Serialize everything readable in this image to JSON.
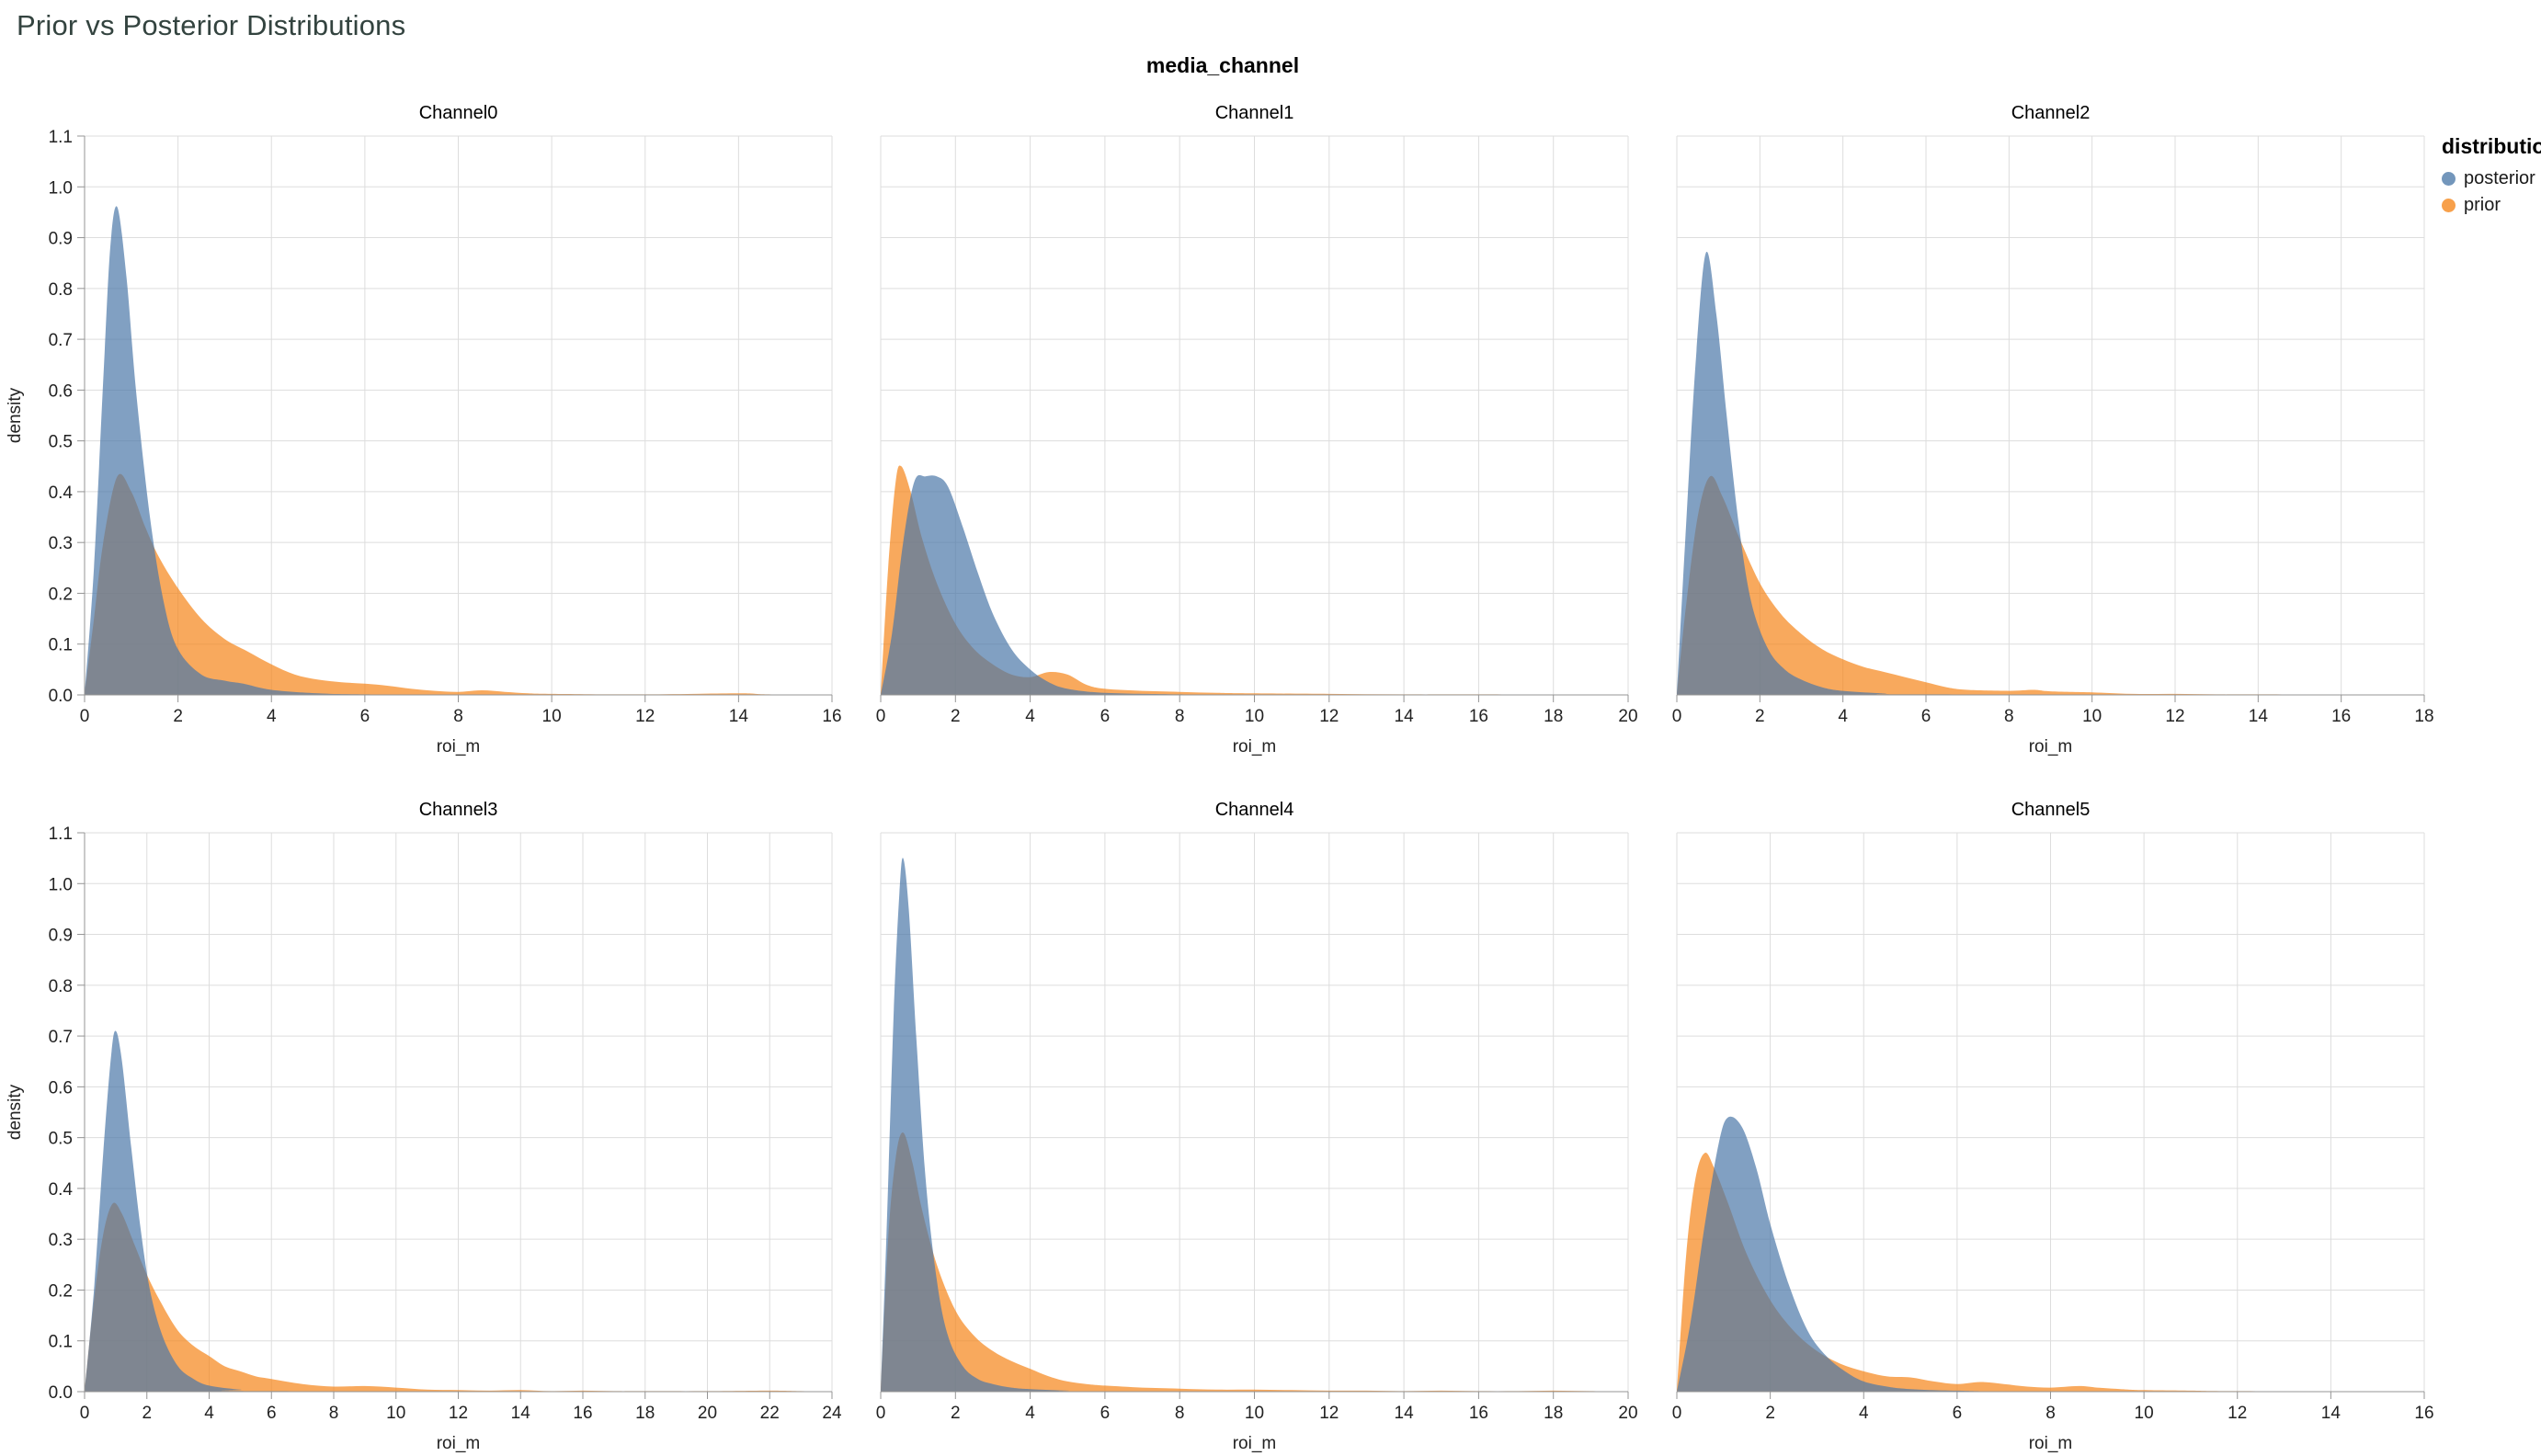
{
  "header": {
    "title": "Prior vs Posterior Distributions"
  },
  "legend": {
    "title": "distribution",
    "entries": [
      {
        "label": "posterior",
        "color": "#4c78a8"
      },
      {
        "label": "prior",
        "color": "#f58518"
      }
    ]
  },
  "chart_data": {
    "type": "area",
    "figure_title": "media_channel",
    "xlabel": "roi_m",
    "ylabel": "density",
    "ylim": [
      0,
      1.1
    ],
    "ytick_step": 0.1,
    "opacity": 0.7,
    "grid": true,
    "legend_position": "top-right",
    "series_colors": {
      "posterior": "#4c78a8",
      "prior": "#f58518"
    },
    "panels": [
      {
        "title": "Channel0",
        "xlim": [
          0,
          16
        ],
        "xtick_step": 2,
        "posterior": [
          [
            0,
            0
          ],
          [
            0.2,
            0.25
          ],
          [
            0.4,
            0.62
          ],
          [
            0.55,
            0.88
          ],
          [
            0.7,
            0.96
          ],
          [
            0.9,
            0.82
          ],
          [
            1.1,
            0.6
          ],
          [
            1.4,
            0.35
          ],
          [
            1.7,
            0.18
          ],
          [
            2.0,
            0.09
          ],
          [
            2.5,
            0.04
          ],
          [
            3.0,
            0.028
          ],
          [
            3.4,
            0.022
          ],
          [
            4.0,
            0.01
          ],
          [
            5,
            0.003
          ],
          [
            6,
            0.001
          ],
          [
            8,
            0
          ],
          [
            16,
            0
          ]
        ],
        "prior": [
          [
            0,
            0
          ],
          [
            0.2,
            0.15
          ],
          [
            0.4,
            0.3
          ],
          [
            0.7,
            0.43
          ],
          [
            1.0,
            0.4
          ],
          [
            1.3,
            0.33
          ],
          [
            1.6,
            0.27
          ],
          [
            2.0,
            0.21
          ],
          [
            2.5,
            0.15
          ],
          [
            3.0,
            0.11
          ],
          [
            3.5,
            0.085
          ],
          [
            4.0,
            0.06
          ],
          [
            4.5,
            0.04
          ],
          [
            5.0,
            0.03
          ],
          [
            5.5,
            0.025
          ],
          [
            6.0,
            0.022
          ],
          [
            6.5,
            0.018
          ],
          [
            7.0,
            0.012
          ],
          [
            7.5,
            0.008
          ],
          [
            8.0,
            0.006
          ],
          [
            8.5,
            0.009
          ],
          [
            9.0,
            0.006
          ],
          [
            9.5,
            0.003
          ],
          [
            10,
            0.002
          ],
          [
            12,
            0.001
          ],
          [
            14,
            0.003
          ],
          [
            14.6,
            0.001
          ],
          [
            16,
            0
          ]
        ]
      },
      {
        "title": "Channel1",
        "xlim": [
          0,
          20
        ],
        "xtick_step": 2,
        "posterior": [
          [
            0,
            0
          ],
          [
            0.3,
            0.12
          ],
          [
            0.6,
            0.3
          ],
          [
            0.9,
            0.42
          ],
          [
            1.2,
            0.43
          ],
          [
            1.5,
            0.43
          ],
          [
            1.8,
            0.41
          ],
          [
            2.2,
            0.33
          ],
          [
            2.6,
            0.24
          ],
          [
            3.0,
            0.16
          ],
          [
            3.5,
            0.09
          ],
          [
            4.0,
            0.05
          ],
          [
            4.5,
            0.025
          ],
          [
            5.0,
            0.012
          ],
          [
            6,
            0.004
          ],
          [
            8,
            0.001
          ],
          [
            10,
            0
          ],
          [
            20,
            0
          ]
        ],
        "prior": [
          [
            0,
            0
          ],
          [
            0.2,
            0.25
          ],
          [
            0.4,
            0.42
          ],
          [
            0.55,
            0.45
          ],
          [
            0.8,
            0.4
          ],
          [
            1.1,
            0.31
          ],
          [
            1.5,
            0.22
          ],
          [
            2.0,
            0.14
          ],
          [
            2.5,
            0.09
          ],
          [
            3.0,
            0.06
          ],
          [
            3.5,
            0.04
          ],
          [
            4.0,
            0.035
          ],
          [
            4.5,
            0.045
          ],
          [
            5.0,
            0.04
          ],
          [
            5.5,
            0.02
          ],
          [
            6.0,
            0.012
          ],
          [
            7,
            0.008
          ],
          [
            8,
            0.006
          ],
          [
            9,
            0.004
          ],
          [
            10,
            0.003
          ],
          [
            12,
            0.002
          ],
          [
            14,
            0.001
          ],
          [
            16,
            0.001
          ],
          [
            20,
            0
          ]
        ]
      },
      {
        "title": "Channel2",
        "xlim": [
          0,
          18
        ],
        "xtick_step": 2,
        "posterior": [
          [
            0,
            0
          ],
          [
            0.2,
            0.3
          ],
          [
            0.45,
            0.65
          ],
          [
            0.7,
            0.87
          ],
          [
            0.95,
            0.75
          ],
          [
            1.2,
            0.55
          ],
          [
            1.5,
            0.33
          ],
          [
            1.8,
            0.18
          ],
          [
            2.2,
            0.09
          ],
          [
            2.6,
            0.05
          ],
          [
            3.0,
            0.03
          ],
          [
            3.5,
            0.015
          ],
          [
            4,
            0.008
          ],
          [
            5,
            0.003
          ],
          [
            6,
            0.001
          ],
          [
            18,
            0
          ]
        ],
        "prior": [
          [
            0,
            0
          ],
          [
            0.2,
            0.16
          ],
          [
            0.5,
            0.35
          ],
          [
            0.8,
            0.43
          ],
          [
            1.1,
            0.39
          ],
          [
            1.5,
            0.31
          ],
          [
            2.0,
            0.22
          ],
          [
            2.5,
            0.16
          ],
          [
            3.0,
            0.12
          ],
          [
            3.5,
            0.09
          ],
          [
            4.0,
            0.07
          ],
          [
            4.5,
            0.055
          ],
          [
            5.0,
            0.045
          ],
          [
            5.5,
            0.035
          ],
          [
            6.0,
            0.025
          ],
          [
            6.5,
            0.015
          ],
          [
            7,
            0.01
          ],
          [
            8,
            0.008
          ],
          [
            8.6,
            0.01
          ],
          [
            9,
            0.007
          ],
          [
            10,
            0.005
          ],
          [
            11,
            0.002
          ],
          [
            12,
            0.002
          ],
          [
            13,
            0.001
          ],
          [
            14,
            0.001
          ],
          [
            18,
            0
          ]
        ]
      },
      {
        "title": "Channel3",
        "xlim": [
          0,
          24
        ],
        "xtick_step": 2,
        "posterior": [
          [
            0,
            0
          ],
          [
            0.3,
            0.2
          ],
          [
            0.6,
            0.47
          ],
          [
            0.85,
            0.66
          ],
          [
            1.0,
            0.71
          ],
          [
            1.2,
            0.65
          ],
          [
            1.5,
            0.48
          ],
          [
            1.8,
            0.32
          ],
          [
            2.1,
            0.2
          ],
          [
            2.5,
            0.11
          ],
          [
            3.0,
            0.05
          ],
          [
            3.5,
            0.025
          ],
          [
            4,
            0.012
          ],
          [
            5,
            0.004
          ],
          [
            6,
            0.001
          ],
          [
            24,
            0
          ]
        ],
        "prior": [
          [
            0,
            0
          ],
          [
            0.3,
            0.18
          ],
          [
            0.6,
            0.31
          ],
          [
            0.9,
            0.37
          ],
          [
            1.2,
            0.35
          ],
          [
            1.6,
            0.29
          ],
          [
            2.0,
            0.23
          ],
          [
            2.5,
            0.17
          ],
          [
            3.0,
            0.12
          ],
          [
            3.5,
            0.09
          ],
          [
            4.0,
            0.07
          ],
          [
            4.5,
            0.05
          ],
          [
            5.0,
            0.04
          ],
          [
            5.5,
            0.03
          ],
          [
            6,
            0.025
          ],
          [
            7,
            0.015
          ],
          [
            8,
            0.01
          ],
          [
            9,
            0.011
          ],
          [
            10,
            0.008
          ],
          [
            11,
            0.004
          ],
          [
            12,
            0.003
          ],
          [
            13,
            0.002
          ],
          [
            14,
            0.003
          ],
          [
            15,
            0.001
          ],
          [
            16,
            0.002
          ],
          [
            17,
            0.001
          ],
          [
            18,
            0.001
          ],
          [
            20,
            0.001
          ],
          [
            22,
            0.002
          ],
          [
            23,
            0.001
          ],
          [
            24,
            0
          ]
        ]
      },
      {
        "title": "Channel4",
        "xlim": [
          0,
          20
        ],
        "xtick_step": 2,
        "posterior": [
          [
            0,
            0
          ],
          [
            0.15,
            0.3
          ],
          [
            0.35,
            0.75
          ],
          [
            0.5,
            0.98
          ],
          [
            0.6,
            1.05
          ],
          [
            0.75,
            0.95
          ],
          [
            0.95,
            0.7
          ],
          [
            1.2,
            0.42
          ],
          [
            1.5,
            0.22
          ],
          [
            1.8,
            0.11
          ],
          [
            2.2,
            0.05
          ],
          [
            2.6,
            0.025
          ],
          [
            3,
            0.015
          ],
          [
            3.5,
            0.008
          ],
          [
            4,
            0.005
          ],
          [
            5,
            0.002
          ],
          [
            6,
            0
          ],
          [
            20,
            0
          ]
        ],
        "prior": [
          [
            0,
            0
          ],
          [
            0.2,
            0.3
          ],
          [
            0.4,
            0.46
          ],
          [
            0.6,
            0.51
          ],
          [
            0.85,
            0.45
          ],
          [
            1.1,
            0.36
          ],
          [
            1.5,
            0.25
          ],
          [
            2.0,
            0.16
          ],
          [
            2.5,
            0.11
          ],
          [
            3.0,
            0.08
          ],
          [
            3.5,
            0.06
          ],
          [
            4.0,
            0.045
          ],
          [
            4.5,
            0.03
          ],
          [
            5,
            0.02
          ],
          [
            5.5,
            0.015
          ],
          [
            6,
            0.012
          ],
          [
            7,
            0.008
          ],
          [
            8,
            0.006
          ],
          [
            9,
            0.004
          ],
          [
            10,
            0.004
          ],
          [
            11,
            0.003
          ],
          [
            12,
            0.002
          ],
          [
            13,
            0.002
          ],
          [
            14,
            0.001
          ],
          [
            15,
            0.002
          ],
          [
            16,
            0.001
          ],
          [
            17,
            0.001
          ],
          [
            18,
            0.002
          ],
          [
            19,
            0.001
          ],
          [
            20,
            0
          ]
        ]
      },
      {
        "title": "Channel5",
        "xlim": [
          0,
          16
        ],
        "xtick_step": 2,
        "posterior": [
          [
            0,
            0
          ],
          [
            0.3,
            0.14
          ],
          [
            0.6,
            0.33
          ],
          [
            0.9,
            0.49
          ],
          [
            1.1,
            0.54
          ],
          [
            1.4,
            0.52
          ],
          [
            1.7,
            0.44
          ],
          [
            2.0,
            0.33
          ],
          [
            2.4,
            0.21
          ],
          [
            2.8,
            0.12
          ],
          [
            3.2,
            0.07
          ],
          [
            3.6,
            0.04
          ],
          [
            4.0,
            0.02
          ],
          [
            4.5,
            0.01
          ],
          [
            5,
            0.005
          ],
          [
            6,
            0.002
          ],
          [
            8,
            0
          ],
          [
            16,
            0
          ]
        ],
        "prior": [
          [
            0,
            0
          ],
          [
            0.2,
            0.27
          ],
          [
            0.4,
            0.42
          ],
          [
            0.6,
            0.47
          ],
          [
            0.8,
            0.44
          ],
          [
            1.1,
            0.37
          ],
          [
            1.5,
            0.27
          ],
          [
            2.0,
            0.18
          ],
          [
            2.5,
            0.12
          ],
          [
            3.0,
            0.08
          ],
          [
            3.5,
            0.055
          ],
          [
            4.0,
            0.04
          ],
          [
            4.5,
            0.03
          ],
          [
            5.0,
            0.028
          ],
          [
            5.5,
            0.02
          ],
          [
            6.0,
            0.015
          ],
          [
            6.5,
            0.019
          ],
          [
            7.0,
            0.015
          ],
          [
            7.5,
            0.01
          ],
          [
            8,
            0.008
          ],
          [
            8.6,
            0.011
          ],
          [
            9,
            0.008
          ],
          [
            9.5,
            0.005
          ],
          [
            10,
            0.003
          ],
          [
            11,
            0.002
          ],
          [
            12,
            0.001
          ],
          [
            16,
            0
          ]
        ]
      }
    ]
  }
}
